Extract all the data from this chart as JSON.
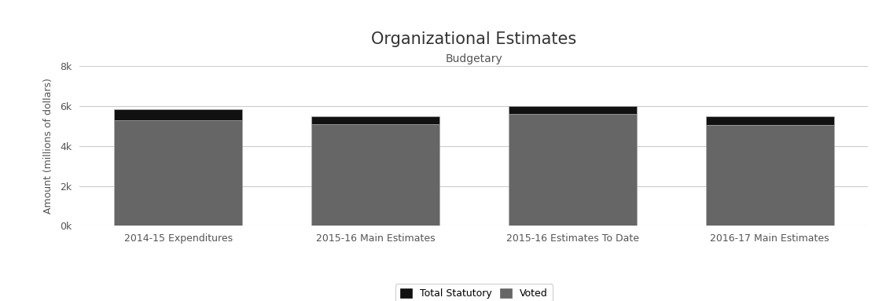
{
  "title": "Organizational Estimates",
  "subtitle": "Budgetary",
  "ylabel": "Amount (millions of dollars)",
  "categories": [
    "2014-15 Expenditures",
    "2015-16 Main Estimates",
    "2015-16 Estimates To Date",
    "2016-17 Main Estimates"
  ],
  "voted": [
    5300,
    5100,
    5600,
    5050
  ],
  "statutory": [
    550,
    380,
    390,
    430
  ],
  "voted_color": "#666666",
  "statutory_color": "#111111",
  "bar_width": 0.65,
  "ylim": [
    0,
    8000
  ],
  "yticks": [
    0,
    2000,
    4000,
    6000,
    8000
  ],
  "ytick_labels": [
    "0k",
    "2k",
    "4k",
    "6k",
    "8k"
  ],
  "bg_color": "#ffffff",
  "grid_color": "#cccccc",
  "bar_edge_color": "#aaaaaa",
  "title_fontsize": 15,
  "subtitle_fontsize": 10,
  "tick_fontsize": 9,
  "ylabel_fontsize": 9,
  "legend_labels": [
    "Total Statutory",
    "Voted"
  ],
  "legend_colors": [
    "#111111",
    "#666666"
  ]
}
